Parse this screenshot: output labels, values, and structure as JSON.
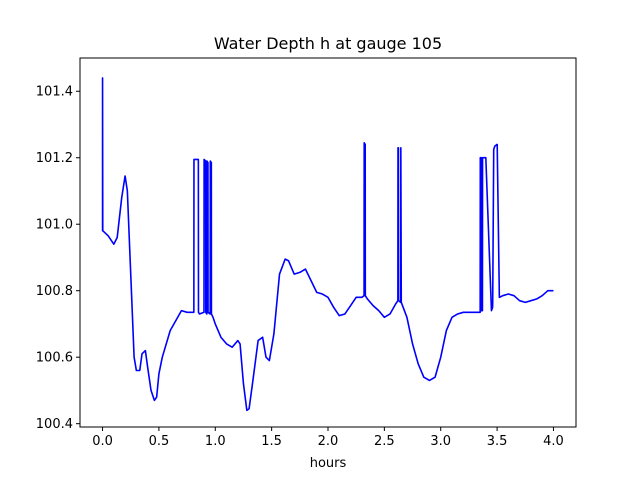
{
  "chart_data": {
    "type": "line",
    "title": "Water Depth h at gauge 105",
    "xlabel": "hours",
    "ylabel": "",
    "xlim": [
      -0.2,
      4.2
    ],
    "ylim": [
      100.39,
      101.5
    ],
    "xticks": [
      0.0,
      0.5,
      1.0,
      1.5,
      2.0,
      2.5,
      3.0,
      3.5,
      4.0
    ],
    "xtick_labels": [
      "0.0",
      "0.5",
      "1.0",
      "1.5",
      "2.0",
      "2.5",
      "3.0",
      "3.5",
      "4.0"
    ],
    "yticks": [
      100.4,
      100.6,
      100.8,
      101.0,
      101.2,
      101.4
    ],
    "ytick_labels": [
      "100.4",
      "100.6",
      "100.8",
      "101.0",
      "101.2",
      "101.4"
    ],
    "grid": false,
    "series": [
      {
        "color": "#0000ff",
        "x": [
          0.0,
          0.0,
          0.002,
          0.01,
          0.05,
          0.1,
          0.13,
          0.17,
          0.2,
          0.22,
          0.25,
          0.28,
          0.3,
          0.33,
          0.35,
          0.38,
          0.4,
          0.43,
          0.46,
          0.48,
          0.5,
          0.53,
          0.6,
          0.7,
          0.75,
          0.8,
          0.81,
          0.811,
          0.85,
          0.851,
          0.86,
          0.9,
          0.901,
          0.915,
          0.916,
          0.925,
          0.926,
          0.935,
          0.936,
          0.955,
          0.956,
          0.965,
          0.966,
          0.98,
          1.0,
          1.05,
          1.1,
          1.15,
          1.2,
          1.22,
          1.25,
          1.28,
          1.3,
          1.33,
          1.38,
          1.42,
          1.45,
          1.48,
          1.52,
          1.57,
          1.62,
          1.65,
          1.7,
          1.75,
          1.8,
          1.85,
          1.9,
          1.95,
          2.0,
          2.05,
          2.1,
          2.15,
          2.2,
          2.25,
          2.3,
          2.32,
          2.321,
          2.33,
          2.331,
          2.35,
          2.4,
          2.45,
          2.5,
          2.55,
          2.6,
          2.62,
          2.621,
          2.625,
          2.626,
          2.645,
          2.646,
          2.65,
          2.7,
          2.75,
          2.8,
          2.85,
          2.9,
          2.95,
          3.0,
          3.05,
          3.1,
          3.15,
          3.2,
          3.25,
          3.3,
          3.34,
          3.35,
          3.351,
          3.36,
          3.361,
          3.37,
          3.371,
          3.4,
          3.45,
          3.46,
          3.461,
          3.47,
          3.48,
          3.5,
          3.501,
          3.52,
          3.55,
          3.6,
          3.65,
          3.7,
          3.75,
          3.8,
          3.85,
          3.9,
          3.95,
          4.0
        ],
        "y": [
          100.98,
          101.44,
          100.98,
          100.978,
          100.965,
          100.94,
          100.96,
          101.08,
          101.145,
          101.1,
          100.85,
          100.6,
          100.56,
          100.56,
          100.61,
          100.62,
          100.57,
          100.5,
          100.47,
          100.48,
          100.55,
          100.6,
          100.68,
          100.74,
          100.735,
          100.735,
          100.735,
          101.195,
          101.195,
          100.735,
          100.73,
          100.735,
          101.195,
          101.19,
          100.735,
          100.73,
          101.19,
          101.185,
          100.735,
          100.73,
          101.19,
          101.185,
          100.73,
          100.72,
          100.7,
          100.66,
          100.64,
          100.63,
          100.65,
          100.64,
          100.52,
          100.44,
          100.445,
          100.52,
          100.65,
          100.66,
          100.6,
          100.59,
          100.67,
          100.85,
          100.895,
          100.89,
          100.85,
          100.855,
          100.865,
          100.83,
          100.795,
          100.79,
          100.78,
          100.75,
          100.725,
          100.73,
          100.755,
          100.78,
          100.78,
          100.785,
          101.245,
          101.24,
          100.785,
          100.775,
          100.755,
          100.74,
          100.72,
          100.73,
          100.76,
          100.77,
          101.23,
          101.23,
          100.77,
          100.765,
          101.23,
          100.765,
          100.72,
          100.64,
          100.58,
          100.54,
          100.53,
          100.54,
          100.6,
          100.68,
          100.72,
          100.73,
          100.735,
          100.735,
          100.735,
          100.735,
          100.735,
          101.2,
          101.2,
          100.74,
          100.74,
          101.2,
          101.2,
          100.74,
          100.75,
          100.76,
          101.225,
          101.235,
          101.24,
          101.24,
          100.78,
          100.785,
          100.79,
          100.785,
          100.77,
          100.765,
          100.77,
          100.775,
          100.785,
          100.8,
          100.8
        ]
      }
    ]
  }
}
